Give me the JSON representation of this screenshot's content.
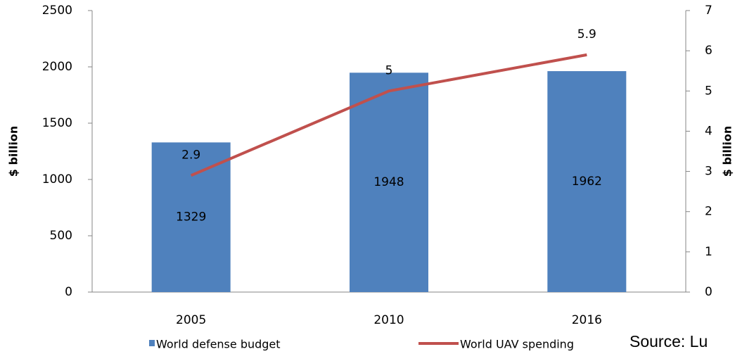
{
  "chart_data": {
    "type": "bar_line",
    "categories": [
      "2005",
      "2010",
      "2016"
    ],
    "series": [
      {
        "name": "World defense budget",
        "color": "#4f81bd",
        "type": "bar",
        "values": [
          1329,
          1948,
          1962
        ]
      },
      {
        "name": "World UAV spending",
        "color": "#c0504d",
        "type": "line",
        "axis": "y2",
        "values": [
          2.9,
          5,
          5.9
        ]
      }
    ],
    "ylabel": "$ billion",
    "y2label": "$ billion",
    "ylim": [
      0,
      2500
    ],
    "yticks": [
      0,
      500,
      1000,
      1500,
      2000,
      2500
    ],
    "y2lim": [
      0,
      7
    ],
    "y2ticks": [
      0,
      1,
      2,
      3,
      4,
      5,
      6,
      7
    ],
    "annotation": "Source: Lu"
  }
}
